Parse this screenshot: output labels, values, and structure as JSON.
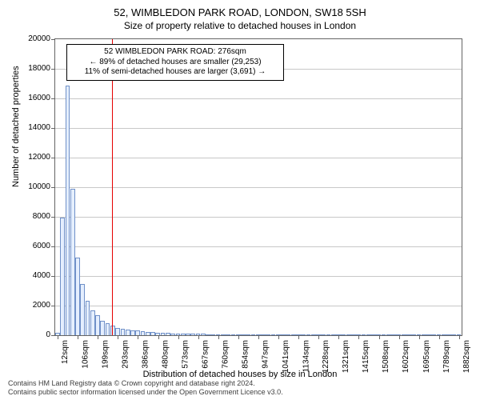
{
  "titles": {
    "main": "52, WIMBLEDON PARK ROAD, LONDON, SW18 5SH",
    "sub": "Size of property relative to detached houses in London"
  },
  "yaxis": {
    "label": "Number of detached properties",
    "min": 0,
    "max": 20000,
    "step": 2000,
    "label_fontsize": 11,
    "tick_fontsize": 10,
    "grid_color": "#c8c8c8"
  },
  "xaxis": {
    "label": "Distribution of detached houses by size in London",
    "tick_labels": [
      "12sqm",
      "106sqm",
      "199sqm",
      "293sqm",
      "386sqm",
      "480sqm",
      "573sqm",
      "667sqm",
      "760sqm",
      "854sqm",
      "947sqm",
      "1041sqm",
      "1134sqm",
      "1228sqm",
      "1321sqm",
      "1415sqm",
      "1508sqm",
      "1602sqm",
      "1695sqm",
      "1789sqm",
      "1882sqm"
    ],
    "tick_interval_bars": 4,
    "label_fontsize": 11,
    "tick_fontsize": 10
  },
  "bars": {
    "values": [
      150,
      7950,
      16850,
      9900,
      5250,
      3450,
      2350,
      1700,
      1350,
      1000,
      800,
      650,
      500,
      450,
      400,
      350,
      300,
      250,
      220,
      200,
      180,
      160,
      140,
      130,
      120,
      110,
      100,
      95,
      90,
      85,
      80,
      75,
      70,
      68,
      65,
      62,
      60,
      58,
      55,
      52,
      50,
      48,
      45,
      44,
      42,
      40,
      38,
      36,
      35,
      34,
      33,
      32,
      31,
      30,
      29,
      28,
      27,
      26,
      25,
      24,
      23,
      22,
      21,
      20,
      20,
      19,
      19,
      18,
      18,
      17,
      17,
      16,
      16,
      15,
      15,
      14,
      14,
      13,
      13,
      12,
      12
    ],
    "fill_color": "#e5efff",
    "border_color": "#6f90c8"
  },
  "reference_line": {
    "x_category_index": 11.3,
    "color": "#e60000",
    "width": 1
  },
  "annotation": {
    "line1": "52 WIMBLEDON PARK ROAD: 276sqm",
    "line2": "← 89% of detached houses are smaller (29,253)",
    "line3": "11% of semi-detached houses are larger (3,691) →",
    "border_color": "#000000",
    "bg_color": "#ffffff",
    "fontsize": 10
  },
  "footer": {
    "line1": "Contains HM Land Registry data © Crown copyright and database right 2024.",
    "line2": "Contains public sector information licensed under the Open Government Licence v3.0."
  },
  "colors": {
    "plot_border": "#646464",
    "background": "#ffffff"
  }
}
